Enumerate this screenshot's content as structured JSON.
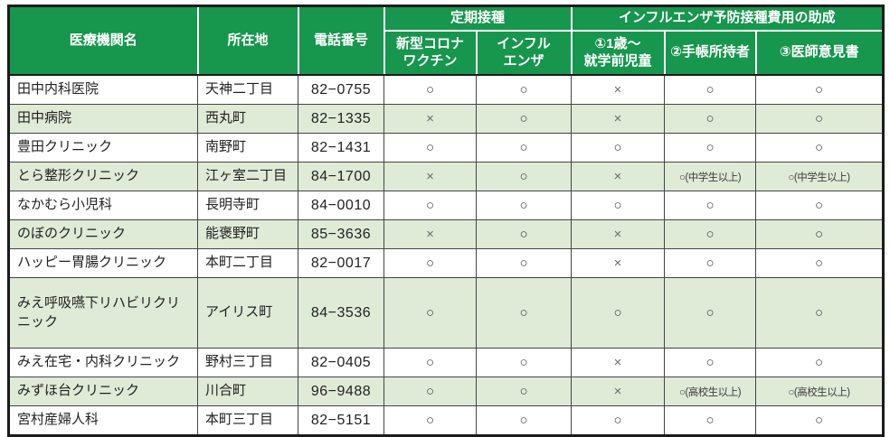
{
  "colors": {
    "header_green": "#17964D",
    "row_alt_green": "#DFEAD7",
    "border_dark": "#1b1b1b"
  },
  "table": {
    "header": {
      "name": "医療機関名",
      "location": "所在地",
      "phone": "電話番号",
      "group_routine": "定期接種",
      "group_subsidy": "インフルエンザ予防接種費用の助成",
      "sub_covid": "新型コロナ\nワクチン",
      "sub_flu": "インフル\nエンザ",
      "sub_child": "①1歳～\n就学前児童",
      "sub_notebook": "②手帳所持者",
      "sub_doctor": "③医師意見書"
    },
    "rows": [
      {
        "name": "田中内科医院",
        "location": "天神二丁目",
        "phone": "82−0755",
        "marks": [
          "○",
          "○",
          "×",
          "○",
          "○"
        ]
      },
      {
        "name": "田中病院",
        "location": "西丸町",
        "phone": "82−1335",
        "marks": [
          "×",
          "○",
          "×",
          "○",
          "○"
        ]
      },
      {
        "name": "豊田クリニック",
        "location": "南野町",
        "phone": "82−1431",
        "marks": [
          "○",
          "○",
          "○",
          "○",
          "○"
        ]
      },
      {
        "name": "とら整形クリニック",
        "location": "江ヶ室二丁目",
        "phone": "84−1700",
        "marks": [
          "×",
          "○",
          "×",
          "○(中学生以上)",
          "○(中学生以上)"
        ]
      },
      {
        "name": "なかむら小児科",
        "location": "長明寺町",
        "phone": "84−0010",
        "marks": [
          "○",
          "○",
          "○",
          "○",
          "○"
        ]
      },
      {
        "name": "のぼのクリニック",
        "location": "能褒野町",
        "phone": "85−3636",
        "marks": [
          "×",
          "○",
          "×",
          "○",
          "○"
        ]
      },
      {
        "name": "ハッピー胃腸クリニック",
        "location": "本町二丁目",
        "phone": "82−0017",
        "marks": [
          "○",
          "○",
          "×",
          "○",
          "○"
        ]
      },
      {
        "name": "みえ呼吸嚥下リハビリクリニック",
        "location": "アイリス町",
        "phone": "84−3536",
        "marks": [
          "○",
          "○",
          "○",
          "○",
          "○"
        ]
      },
      {
        "name": "みえ在宅・内科クリニック",
        "location": "野村三丁目",
        "phone": "82−0405",
        "marks": [
          "○",
          "○",
          "×",
          "○",
          "○"
        ]
      },
      {
        "name": "みずほ台クリニック",
        "location": "川合町",
        "phone": "96−9488",
        "marks": [
          "○",
          "○",
          "×",
          "○(高校生以上)",
          "○(高校生以上)"
        ]
      },
      {
        "name": "宮村産婦人科",
        "location": "本町三丁目",
        "phone": "82−5151",
        "marks": [
          "○",
          "○",
          "○",
          "○",
          "○"
        ]
      }
    ]
  }
}
